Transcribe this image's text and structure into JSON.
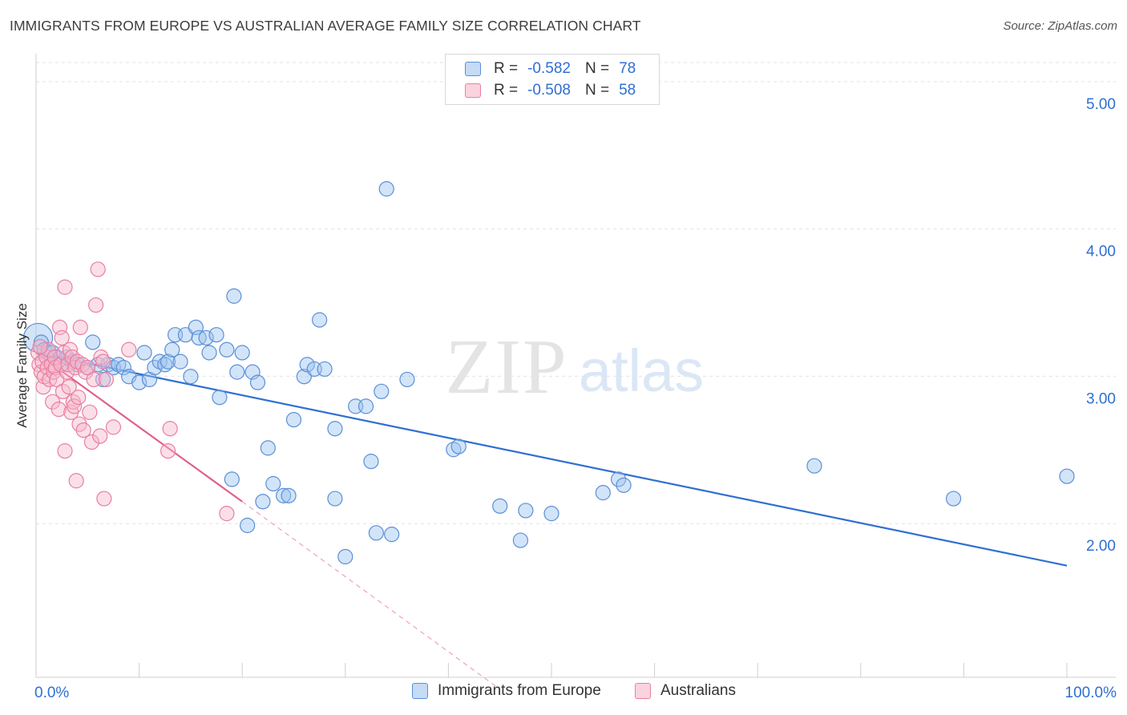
{
  "title": "IMMIGRANTS FROM EUROPE VS AUSTRALIAN AVERAGE FAMILY SIZE CORRELATION CHART",
  "source": "Source: ZipAtlas.com",
  "watermark": {
    "zip": "ZIP",
    "atlas": "atlas"
  },
  "legend": {
    "rows": [
      {
        "r_label": "R =",
        "r_value": "-0.582",
        "n_label": "N =",
        "n_value": "78",
        "color": "#9cc3f0",
        "border": "#5b8fd6"
      },
      {
        "r_label": "R =",
        "r_value": "-0.508",
        "n_label": "N =",
        "n_value": "58",
        "color": "#f7b9cc",
        "border": "#e87fa0"
      }
    ]
  },
  "bottom_legend": [
    {
      "label": "Immigrants from Europe",
      "color": "#9cc3f0",
      "border": "#5b8fd6"
    },
    {
      "label": "Australians",
      "color": "#f7b9cc",
      "border": "#e87fa0"
    }
  ],
  "chart_data": {
    "type": "scatter",
    "title": "IMMIGRANTS FROM EUROPE VS AUSTRALIAN AVERAGE FAMILY SIZE CORRELATION CHART",
    "xlabel": "",
    "ylabel": "Average Family Size",
    "xlim": [
      0,
      100
    ],
    "ylim": [
      1.0,
      5.15
    ],
    "x_tick_labels": [
      "0.0%",
      "100.0%"
    ],
    "y_ticks": [
      2.0,
      3.0,
      4.0,
      5.0
    ],
    "y_tick_labels": [
      "2.00",
      "3.00",
      "4.00",
      "5.00"
    ],
    "grid": true,
    "series": [
      {
        "name": "Immigrants from Europe",
        "color": "#5b8fd6",
        "fill": "#9cc3f0",
        "points": [
          [
            0.2,
            3.28
          ],
          [
            0.5,
            3.25
          ],
          [
            0.8,
            3.2
          ],
          [
            1.2,
            3.18
          ],
          [
            1.6,
            3.18
          ],
          [
            2.0,
            3.15
          ],
          [
            2.5,
            3.1
          ],
          [
            3.0,
            3.15
          ],
          [
            3.5,
            3.12
          ],
          [
            4.0,
            3.1
          ],
          [
            5.0,
            3.08
          ],
          [
            5.5,
            3.25
          ],
          [
            6.0,
            3.1
          ],
          [
            6.5,
            3.0
          ],
          [
            7.0,
            3.1
          ],
          [
            7.5,
            3.08
          ],
          [
            8.0,
            3.1
          ],
          [
            8.5,
            3.08
          ],
          [
            9.0,
            3.02
          ],
          [
            10.0,
            2.98
          ],
          [
            10.5,
            3.18
          ],
          [
            11.0,
            3.0
          ],
          [
            11.5,
            3.08
          ],
          [
            12.0,
            3.12
          ],
          [
            12.5,
            3.1
          ],
          [
            12.8,
            3.12
          ],
          [
            13.2,
            3.2
          ],
          [
            13.5,
            3.3
          ],
          [
            14.0,
            3.12
          ],
          [
            14.5,
            3.3
          ],
          [
            15.0,
            3.02
          ],
          [
            15.5,
            3.35
          ],
          [
            15.8,
            3.28
          ],
          [
            16.5,
            3.28
          ],
          [
            16.8,
            3.18
          ],
          [
            17.5,
            3.3
          ],
          [
            17.8,
            2.88
          ],
          [
            18.5,
            3.2
          ],
          [
            19.0,
            2.33
          ],
          [
            19.2,
            3.56
          ],
          [
            19.5,
            3.05
          ],
          [
            20.0,
            3.18
          ],
          [
            20.5,
            2.02
          ],
          [
            21.0,
            3.05
          ],
          [
            21.5,
            2.98
          ],
          [
            22.0,
            2.18
          ],
          [
            22.5,
            2.54
          ],
          [
            23.0,
            2.3
          ],
          [
            24.0,
            2.22
          ],
          [
            24.5,
            2.22
          ],
          [
            25.0,
            2.73
          ],
          [
            26.0,
            3.02
          ],
          [
            26.3,
            3.1
          ],
          [
            27.0,
            3.07
          ],
          [
            27.5,
            3.4
          ],
          [
            28.0,
            3.07
          ],
          [
            29.0,
            2.2
          ],
          [
            29.0,
            2.67
          ],
          [
            30.0,
            1.81
          ],
          [
            31.0,
            2.82
          ],
          [
            32.0,
            2.82
          ],
          [
            32.5,
            2.45
          ],
          [
            33.0,
            1.97
          ],
          [
            33.5,
            2.92
          ],
          [
            34.0,
            4.28
          ],
          [
            34.5,
            1.96
          ],
          [
            36.0,
            3.0
          ],
          [
            40.5,
            2.53
          ],
          [
            41.0,
            2.55
          ],
          [
            45.0,
            2.15
          ],
          [
            47.0,
            1.92
          ],
          [
            47.5,
            2.12
          ],
          [
            50.0,
            2.1
          ],
          [
            55.0,
            2.24
          ],
          [
            56.5,
            2.33
          ],
          [
            57.0,
            2.29
          ],
          [
            75.5,
            2.42
          ],
          [
            89.0,
            2.2
          ],
          [
            100.0,
            2.35
          ]
        ],
        "trend": {
          "x0": 0,
          "y0": 3.18,
          "x1": 100,
          "y1": 1.75
        }
      },
      {
        "name": "Australians",
        "color": "#e87fa0",
        "fill": "#f7b9cc",
        "points": [
          [
            0.2,
            3.18
          ],
          [
            0.3,
            3.1
          ],
          [
            0.5,
            3.05
          ],
          [
            0.6,
            3.12
          ],
          [
            0.7,
            2.95
          ],
          [
            0.8,
            3.02
          ],
          [
            1.0,
            3.15
          ],
          [
            1.1,
            3.08
          ],
          [
            1.2,
            3.2
          ],
          [
            1.3,
            3.0
          ],
          [
            1.5,
            3.1
          ],
          [
            1.6,
            2.85
          ],
          [
            1.7,
            3.05
          ],
          [
            1.8,
            3.15
          ],
          [
            1.9,
            3.08
          ],
          [
            2.0,
            3.0
          ],
          [
            2.2,
            2.8
          ],
          [
            2.3,
            3.35
          ],
          [
            2.4,
            3.1
          ],
          [
            2.5,
            3.28
          ],
          [
            2.6,
            2.92
          ],
          [
            2.7,
            3.18
          ],
          [
            2.8,
            2.52
          ],
          [
            2.8,
            3.62
          ],
          [
            3.0,
            3.05
          ],
          [
            3.1,
            3.1
          ],
          [
            3.2,
            2.95
          ],
          [
            3.3,
            3.2
          ],
          [
            3.4,
            2.78
          ],
          [
            3.5,
            3.15
          ],
          [
            3.6,
            2.85
          ],
          [
            3.7,
            2.82
          ],
          [
            3.8,
            3.08
          ],
          [
            3.9,
            2.32
          ],
          [
            4.0,
            3.12
          ],
          [
            4.1,
            2.88
          ],
          [
            4.2,
            2.7
          ],
          [
            4.3,
            3.35
          ],
          [
            4.5,
            3.1
          ],
          [
            4.6,
            2.66
          ],
          [
            4.8,
            3.05
          ],
          [
            5.0,
            3.08
          ],
          [
            5.2,
            2.78
          ],
          [
            5.4,
            2.58
          ],
          [
            5.6,
            3.0
          ],
          [
            5.8,
            3.5
          ],
          [
            6.0,
            3.74
          ],
          [
            6.2,
            2.62
          ],
          [
            6.3,
            3.15
          ],
          [
            6.5,
            3.12
          ],
          [
            6.6,
            2.2
          ],
          [
            6.8,
            3.0
          ],
          [
            7.5,
            2.68
          ],
          [
            9.0,
            3.2
          ],
          [
            12.8,
            2.52
          ],
          [
            13.0,
            2.67
          ],
          [
            18.5,
            2.1
          ],
          [
            0.4,
            3.22
          ]
        ],
        "trend": {
          "x0": 0,
          "y0": 3.18,
          "x1": 20,
          "y1": 2.18
        },
        "trend_dashed_extension": {
          "x0": 20,
          "y0": 2.18,
          "x1": 45,
          "y1": 0.92
        }
      }
    ]
  }
}
